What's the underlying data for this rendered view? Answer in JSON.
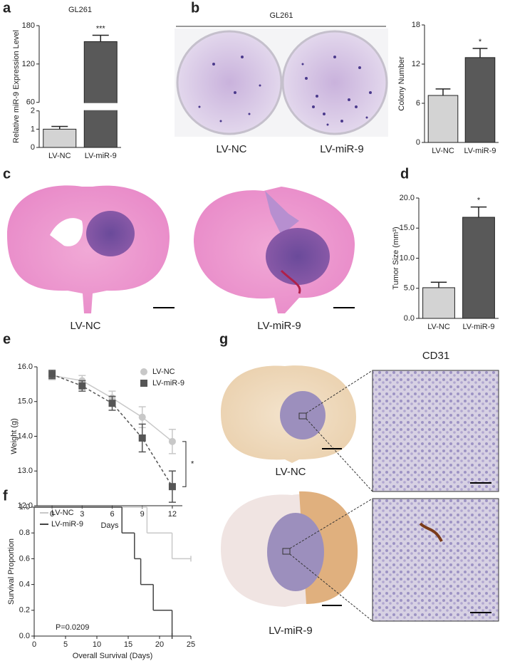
{
  "panel_labels": [
    "a",
    "b",
    "c",
    "d",
    "e",
    "f",
    "g"
  ],
  "images": {
    "b": {
      "title": "GL261",
      "captions": [
        "LV-NC",
        "LV-miR-9"
      ]
    },
    "c": {
      "captions": [
        "LV-NC",
        "LV-miR-9"
      ]
    },
    "g": {
      "title": "CD31",
      "captions": [
        "LV-NC",
        "LV-miR-9"
      ]
    }
  },
  "chart_data": [
    {
      "type": "bar",
      "title": "GL261",
      "y_label": "Relative miR-9 Expression Level",
      "categories": [
        "LV-NC",
        "LV-miR-9"
      ],
      "values": [
        1.0,
        155
      ],
      "errors": [
        0.15,
        10
      ],
      "colors": [
        "#d3d3d3",
        "#595959"
      ],
      "ylim": [
        0,
        180
      ],
      "ybreak": [
        2,
        60
      ],
      "yticks": [
        0,
        1,
        2,
        60,
        120,
        180
      ],
      "annotations": [
        "***"
      ]
    },
    {
      "type": "bar",
      "y_label": "Colony Number",
      "categories": [
        "LV-NC",
        "LV-miR-9"
      ],
      "values": [
        7.2,
        13.0
      ],
      "errors": [
        1.0,
        1.4
      ],
      "colors": [
        "#d3d3d3",
        "#595959"
      ],
      "ylim": [
        0,
        18
      ],
      "yticks": [
        0,
        6,
        12,
        18
      ],
      "annotations": [
        "*"
      ]
    },
    {
      "type": "bar",
      "y_label": "Tumor Size (mm³)",
      "categories": [
        "LV-NC",
        "LV-miR-9"
      ],
      "values": [
        5.1,
        16.8
      ],
      "errors": [
        0.9,
        1.7
      ],
      "colors": [
        "#d3d3d3",
        "#595959"
      ],
      "ylim": [
        0,
        20
      ],
      "yticks": [
        {
          "value": 0,
          "label": "0.0"
        },
        {
          "value": 5,
          "label": "5.0"
        },
        {
          "value": 10,
          "label": "10.0"
        },
        {
          "value": 15,
          "label": "15.0"
        },
        {
          "value": 20,
          "label": "20.0"
        }
      ],
      "annotations": [
        "*"
      ]
    },
    {
      "type": "line",
      "x_label": "Days",
      "y_label": "Weight (g)",
      "x": [
        0,
        3,
        6,
        9,
        12
      ],
      "xlim": [
        -1.5,
        13
      ],
      "xticks": [
        0,
        3,
        6,
        9,
        12
      ],
      "ylim": [
        12,
        16
      ],
      "yticks": [
        {
          "value": 12,
          "label": "12.0"
        },
        {
          "value": 13,
          "label": "13.0"
        },
        {
          "value": 14,
          "label": "14.0"
        },
        {
          "value": 15,
          "label": "15.0"
        },
        {
          "value": 16,
          "label": "16.0"
        }
      ],
      "series": [
        {
          "name": "LV-NC",
          "color": "#c8c8c8",
          "marker": "circle",
          "dashed": false,
          "values": [
            15.75,
            15.6,
            15.1,
            14.55,
            13.85
          ],
          "errors": [
            0.12,
            0.15,
            0.2,
            0.3,
            0.35
          ]
        },
        {
          "name": "LV-miR-9",
          "color": "#555555",
          "marker": "square",
          "dashed": true,
          "values": [
            15.78,
            15.45,
            14.95,
            13.95,
            12.55
          ],
          "errors": [
            0.12,
            0.15,
            0.2,
            0.4,
            0.45
          ]
        }
      ],
      "annotations": [
        "*"
      ]
    },
    {
      "type": "step",
      "x_label": "Overall Survival (Days)",
      "y_label": "Survival Proportion",
      "xlim": [
        0,
        25
      ],
      "xticks": [
        0,
        5,
        10,
        15,
        20,
        25
      ],
      "ylim": [
        0,
        1
      ],
      "yticks": [
        {
          "value": 0,
          "label": "0.0"
        },
        {
          "value": 0.2,
          "label": "0.2"
        },
        {
          "value": 0.4,
          "label": "0.4"
        },
        {
          "value": 0.6,
          "label": "0.6"
        },
        {
          "value": 0.8,
          "label": "0.8"
        },
        {
          "value": 1,
          "label": "1.0"
        }
      ],
      "series": [
        {
          "name": "LV-NC",
          "color": "#c8c8c8",
          "x": [
            0,
            18,
            22,
            25
          ],
          "values": [
            1.0,
            0.8,
            0.6,
            0.6
          ]
        },
        {
          "name": "LV-miR-9",
          "color": "#444444",
          "x": [
            0,
            14,
            16,
            17,
            19,
            22
          ],
          "values": [
            1.0,
            0.8,
            0.6,
            0.4,
            0.2,
            0.0
          ]
        }
      ],
      "annotations": [
        "P=0.0209"
      ]
    }
  ]
}
